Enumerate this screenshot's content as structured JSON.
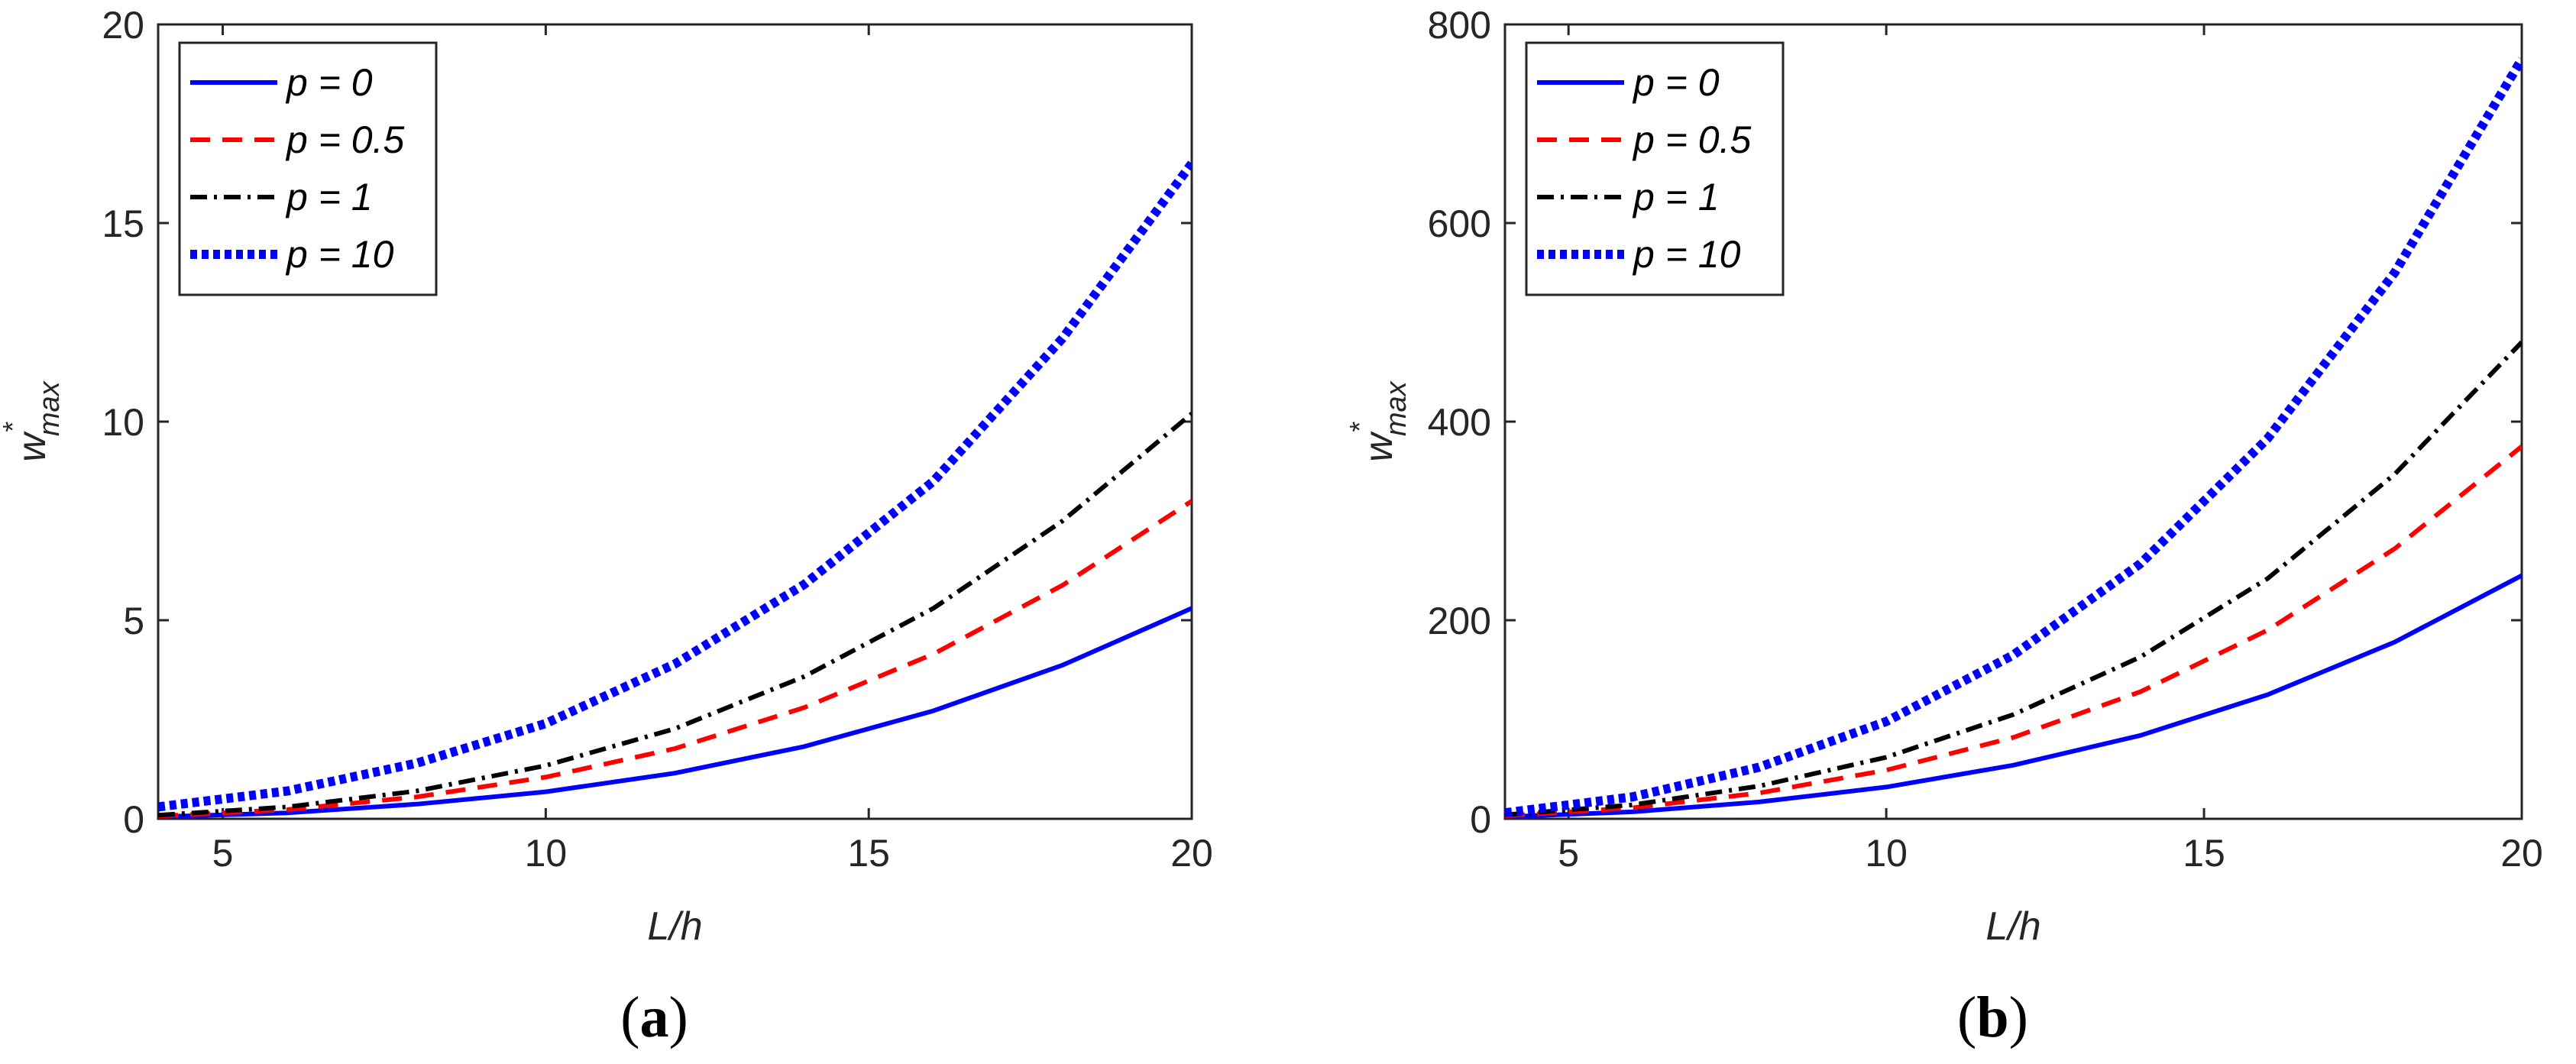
{
  "chart_data": [
    {
      "type": "line",
      "panel_label": "a",
      "xlabel": "L/h",
      "ylabel": {
        "base": "w",
        "superscript": "*",
        "subscript": "max"
      },
      "xlim": [
        4,
        20
      ],
      "ylim": [
        0,
        20
      ],
      "xticks": [
        5,
        10,
        15,
        20
      ],
      "yticks": [
        0,
        5,
        10,
        15,
        20
      ],
      "legend_position": "top-left",
      "grid": false,
      "x": [
        4,
        6,
        8,
        10,
        12,
        14,
        16,
        18,
        20
      ],
      "series": [
        {
          "name": "p = 0",
          "style": "solid",
          "color": "#0000ff",
          "values": [
            0.05,
            0.15,
            0.37,
            0.68,
            1.15,
            1.82,
            2.72,
            3.87,
            5.3
          ]
        },
        {
          "name": "p = 0.5",
          "style": "dashed",
          "color": "#ff0000",
          "values": [
            0.07,
            0.23,
            0.55,
            1.05,
            1.77,
            2.8,
            4.15,
            5.88,
            8.0
          ]
        },
        {
          "name": "p = 1",
          "style": "dashdot",
          "color": "#000000",
          "values": [
            0.09,
            0.3,
            0.7,
            1.34,
            2.27,
            3.58,
            5.3,
            7.5,
            10.2
          ]
        },
        {
          "name": "p = 10",
          "style": "dotted",
          "color": "#0000ff",
          "values": [
            0.3,
            0.7,
            1.4,
            2.4,
            3.9,
            5.9,
            8.5,
            12.1,
            16.5
          ]
        }
      ]
    },
    {
      "type": "line",
      "panel_label": "b",
      "xlabel": "L/h",
      "ylabel": {
        "base": "w",
        "superscript": "*",
        "subscript": "max"
      },
      "xlim": [
        4,
        20
      ],
      "ylim": [
        0,
        800
      ],
      "xticks": [
        5,
        10,
        15,
        20
      ],
      "yticks": [
        0,
        200,
        400,
        600,
        800
      ],
      "legend_position": "top-left",
      "grid": false,
      "x": [
        4,
        6,
        8,
        10,
        12,
        14,
        16,
        18,
        20
      ],
      "series": [
        {
          "name": "p = 0",
          "style": "solid",
          "color": "#0000ff",
          "values": [
            2,
            7,
            17,
            32,
            54,
            84,
            125,
            178,
            245
          ]
        },
        {
          "name": "p = 0.5",
          "style": "dashed",
          "color": "#ff0000",
          "values": [
            3,
            11,
            26,
            49,
            82,
            128,
            190,
            272,
            375
          ]
        },
        {
          "name": "p = 1",
          "style": "dashdot",
          "color": "#000000",
          "values": [
            4,
            14,
            33,
            62,
            105,
            163,
            242,
            347,
            480
          ]
        },
        {
          "name": "p = 10",
          "style": "dotted",
          "color": "#0000ff",
          "values": [
            6,
            22,
            52,
            98,
            165,
            257,
            383,
            550,
            765
          ]
        }
      ]
    }
  ]
}
